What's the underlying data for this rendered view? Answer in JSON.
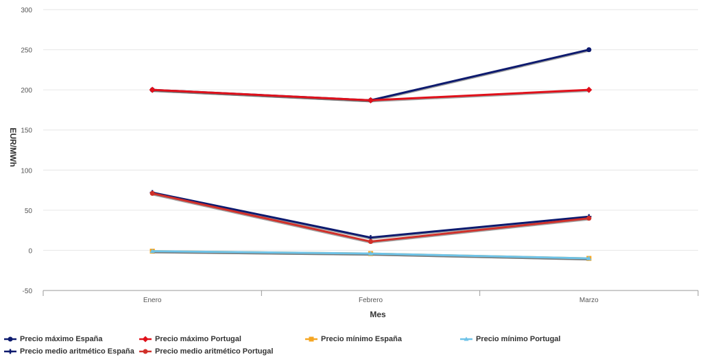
{
  "chart_data": {
    "type": "line",
    "title": "",
    "xlabel": "Mes",
    "ylabel": "EUR/MWh",
    "categories": [
      "Enero",
      "Febrero",
      "Marzo"
    ],
    "ylim": [
      -50,
      300
    ],
    "yticks": [
      -50,
      0,
      50,
      100,
      150,
      200,
      250,
      300
    ],
    "grid": true,
    "legend_position": "bottom",
    "series": [
      {
        "name": "Precio máximo España",
        "values": [
          200,
          187,
          250
        ],
        "color": "#0d1a6e",
        "marker": "circle"
      },
      {
        "name": "Precio máximo Portugal",
        "values": [
          200,
          187,
          200
        ],
        "color": "#e0101a",
        "marker": "diamond"
      },
      {
        "name": "Precio mínimo España",
        "values": [
          -1,
          -4,
          -10
        ],
        "color": "#f5a623",
        "marker": "square"
      },
      {
        "name": "Precio mínimo Portugal",
        "values": [
          -1,
          -4,
          -10
        ],
        "color": "#6ec3e8",
        "marker": "triangle"
      },
      {
        "name": "Precio medio aritmético España",
        "values": [
          72,
          16,
          42
        ],
        "color": "#0d1a6e",
        "marker": "cross"
      },
      {
        "name": "Precio medio aritmético Portugal",
        "values": [
          71,
          11,
          40
        ],
        "color": "#d0302a",
        "marker": "circle"
      }
    ]
  }
}
